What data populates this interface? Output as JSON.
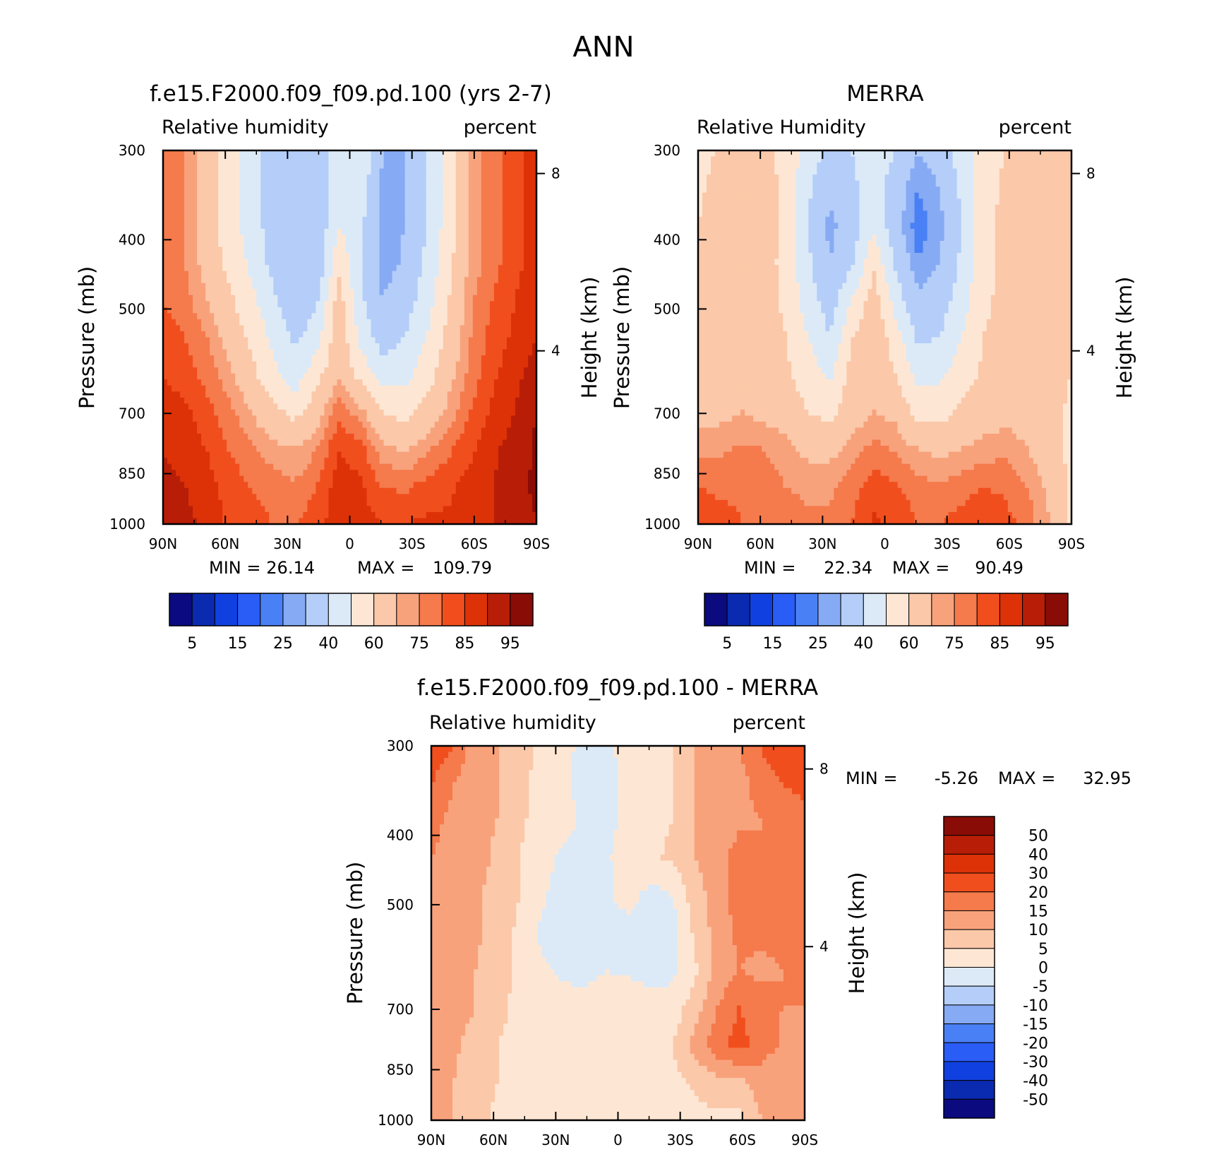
{
  "figure": {
    "season": "ANN"
  },
  "colors": {
    "abs_levels": [
      "#0b0b7f",
      "#0a2ab0",
      "#1040e0",
      "#2a5cf6",
      "#4a80f5",
      "#86aaf3",
      "#b4cef9",
      "#dceaf8",
      "#fde7d4",
      "#fbc8a9",
      "#f8a27c",
      "#f57a4c",
      "#f14e1e",
      "#dd3208",
      "#b81e07",
      "#8a0c06"
    ],
    "diff_levels": [
      "#0b0b7f",
      "#0a2ab0",
      "#1040e0",
      "#2a5cf6",
      "#4a80f5",
      "#86aaf3",
      "#b4cef9",
      "#dceaf8",
      "#fde7d4",
      "#fbc8a9",
      "#f8a27c",
      "#f57a4c",
      "#f14e1e",
      "#dd3208",
      "#b81e07",
      "#8a0c06"
    ]
  },
  "chart_data": [
    {
      "type": "heatmap",
      "id": "model",
      "title": "f.e15.F2000.f09_f09.pd.100 (yrs 2-7)",
      "left_label": "Relative humidity",
      "right_label": "percent",
      "ylabel": "Pressure (mb)",
      "y2label": "Height (km)",
      "x_ticks": [
        "90N",
        "60N",
        "30N",
        "0",
        "30S",
        "60S",
        "90S"
      ],
      "y_ticks": [
        "300",
        "400",
        "500",
        "700",
        "850",
        "1000"
      ],
      "y2_ticks": [
        "8",
        "4"
      ],
      "min_label": "MIN =",
      "min_value": "26.14",
      "max_label": "MAX =",
      "max_value": "109.79",
      "colorbar_labels": [
        "5",
        "15",
        "25",
        "40",
        "60",
        "75",
        "85",
        "95"
      ],
      "x_range_deg": [
        90,
        -90
      ],
      "y_range_mb": [
        300,
        1000
      ],
      "grid_values": [
        [
          80,
          75,
          65,
          55,
          45,
          35,
          30,
          35,
          45,
          50,
          30,
          30,
          40,
          55,
          72,
          78,
          83,
          88
        ],
        [
          80,
          75,
          65,
          55,
          45,
          35,
          30,
          33,
          45,
          45,
          28,
          30,
          40,
          55,
          72,
          78,
          83,
          88
        ],
        [
          80,
          75,
          65,
          55,
          45,
          35,
          30,
          32,
          50,
          42,
          27,
          30,
          40,
          55,
          72,
          78,
          83,
          88
        ],
        [
          80,
          75,
          67,
          57,
          48,
          37,
          32,
          30,
          58,
          40,
          27,
          31,
          42,
          57,
          72,
          78,
          83,
          88
        ],
        [
          80,
          77,
          70,
          62,
          53,
          42,
          33,
          38,
          65,
          42,
          30,
          35,
          45,
          60,
          74,
          80,
          85,
          90
        ],
        [
          82,
          80,
          75,
          67,
          58,
          47,
          38,
          45,
          68,
          47,
          35,
          40,
          50,
          63,
          75,
          82,
          86,
          90
        ],
        [
          85,
          83,
          78,
          72,
          63,
          53,
          44,
          57,
          68,
          57,
          45,
          47,
          55,
          67,
          77,
          84,
          88,
          93
        ],
        [
          87,
          86,
          82,
          77,
          70,
          63,
          57,
          66,
          79,
          72,
          60,
          56,
          64,
          72,
          80,
          86,
          90,
          95
        ],
        [
          89,
          88,
          85,
          80,
          76,
          72,
          70,
          75,
          85,
          82,
          72,
          69,
          74,
          79,
          84,
          89,
          92,
          96
        ],
        [
          93,
          90,
          87,
          83,
          80,
          78,
          76,
          80,
          88,
          86,
          80,
          79,
          82,
          84,
          87,
          90,
          93,
          96
        ],
        [
          95,
          92,
          88,
          84,
          82,
          80,
          80,
          83,
          88,
          87,
          85,
          85,
          86,
          86,
          88,
          90,
          92,
          95
        ]
      ]
    },
    {
      "type": "heatmap",
      "id": "obs",
      "title": "MERRA",
      "left_label": "Relative Humidity",
      "right_label": "percent",
      "ylabel": "Pressure (mb)",
      "y2label": "Height (km)",
      "x_ticks": [
        "90N",
        "60N",
        "30N",
        "0",
        "30S",
        "60S",
        "90S"
      ],
      "y_ticks": [
        "300",
        "400",
        "500",
        "700",
        "850",
        "1000"
      ],
      "y2_ticks": [
        "8",
        "4"
      ],
      "min_label": "MIN =",
      "min_value": "22.34",
      "max_label": "MAX =",
      "max_value": "90.49",
      "colorbar_labels": [
        "5",
        "15",
        "25",
        "40",
        "60",
        "75",
        "85",
        "95"
      ],
      "x_range_deg": [
        90,
        -90
      ],
      "y_range_mb": [
        300,
        1000
      ],
      "grid_values": [
        [
          55,
          62,
          65,
          62,
          57,
          45,
          38,
          40,
          45,
          40,
          30,
          35,
          45,
          56,
          60,
          62,
          62,
          62
        ],
        [
          58,
          64,
          66,
          64,
          58,
          42,
          32,
          38,
          45,
          35,
          25,
          30,
          42,
          56,
          62,
          64,
          62,
          62
        ],
        [
          60,
          65,
          66,
          64,
          58,
          40,
          28,
          35,
          48,
          33,
          22,
          28,
          40,
          56,
          63,
          65,
          63,
          62
        ],
        [
          62,
          65,
          66,
          64,
          57,
          42,
          30,
          38,
          58,
          38,
          25,
          30,
          42,
          56,
          63,
          65,
          63,
          62
        ],
        [
          63,
          66,
          66,
          64,
          58,
          45,
          35,
          50,
          66,
          45,
          32,
          35,
          45,
          58,
          63,
          65,
          63,
          62
        ],
        [
          63,
          66,
          66,
          64,
          60,
          50,
          40,
          60,
          67,
          55,
          38,
          40,
          50,
          60,
          64,
          65,
          63,
          62
        ],
        [
          64,
          66,
          66,
          65,
          62,
          55,
          48,
          64,
          68,
          60,
          47,
          48,
          55,
          62,
          65,
          65,
          63,
          60
        ],
        [
          66,
          68,
          70,
          68,
          66,
          60,
          57,
          66,
          70,
          68,
          57,
          56,
          62,
          66,
          67,
          66,
          64,
          58
        ],
        [
          74,
          74,
          76,
          75,
          72,
          68,
          68,
          72,
          77,
          74,
          70,
          68,
          70,
          72,
          74,
          70,
          65,
          57
        ],
        [
          80,
          79,
          79,
          78,
          75,
          74,
          74,
          78,
          83,
          81,
          77,
          76,
          78,
          80,
          79,
          75,
          68,
          58
        ],
        [
          83,
          82,
          80,
          78,
          77,
          76,
          76,
          80,
          86,
          84,
          80,
          80,
          82,
          84,
          82,
          78,
          70,
          58
        ]
      ]
    },
    {
      "type": "heatmap",
      "id": "diff",
      "title": "f.e15.F2000.f09_f09.pd.100 - MERRA",
      "left_label": "Relative humidity",
      "right_label": "percent",
      "ylabel": "Pressure (mb)",
      "y2label": "Height (km)",
      "x_ticks": [
        "90N",
        "60N",
        "30N",
        "0",
        "30S",
        "60S",
        "90S"
      ],
      "y_ticks": [
        "300",
        "400",
        "500",
        "700",
        "850",
        "1000"
      ],
      "y2_ticks": [
        "8",
        "4"
      ],
      "min_label": "MIN =",
      "min_value": "-5.26",
      "max_label": "MAX =",
      "max_value": "32.95",
      "colorbar_labels": [
        "50",
        "40",
        "30",
        "20",
        "15",
        "10",
        "5",
        "0",
        "-5",
        "-10",
        "-15",
        "-20",
        "-30",
        "-40",
        "-50"
      ],
      "x_range_deg": [
        90,
        -90
      ],
      "y_range_mb": [
        300,
        1000
      ],
      "grid_values": [
        [
          25,
          20,
          12,
          10,
          7,
          4,
          2,
          -2,
          -1,
          3,
          3,
          5,
          10,
          12,
          15,
          20,
          25,
          28
        ],
        [
          20,
          15,
          12,
          10,
          7,
          3,
          1,
          -2,
          -3,
          2,
          3,
          5,
          10,
          12,
          13,
          17,
          20,
          22
        ],
        [
          16,
          14,
          12,
          10,
          6,
          3,
          2,
          -1,
          -2,
          2,
          4,
          5,
          10,
          12,
          14,
          15,
          16,
          18
        ],
        [
          15,
          14,
          12,
          9,
          5,
          2,
          -1,
          -3,
          -1,
          4,
          4,
          6,
          10,
          13,
          17,
          15,
          16,
          18
        ],
        [
          14,
          13,
          11,
          8,
          5,
          1,
          -3,
          -3,
          -1,
          2,
          -2,
          0,
          8,
          12,
          18,
          15,
          16,
          18
        ],
        [
          14,
          13,
          11,
          8,
          4,
          -1,
          -3,
          -2,
          -1,
          -2,
          -3,
          -2,
          6,
          12,
          16,
          16,
          16,
          18
        ],
        [
          13,
          12,
          10,
          7,
          4,
          1,
          -1,
          -1,
          0,
          -1,
          -2,
          -1,
          4,
          11,
          15,
          14,
          15,
          18
        ],
        [
          13,
          12,
          10,
          6,
          4,
          3,
          2,
          1,
          3,
          4,
          2,
          2,
          8,
          15,
          20,
          17,
          15,
          15
        ],
        [
          12,
          11,
          8,
          5,
          4,
          3,
          4,
          2,
          2,
          3,
          2,
          5,
          12,
          18,
          22,
          18,
          14,
          12
        ],
        [
          12,
          10,
          7,
          5,
          3,
          3,
          2,
          2,
          2,
          3,
          3,
          3,
          6,
          8,
          8,
          12,
          10,
          10
        ],
        [
          12,
          10,
          7,
          4,
          3,
          4,
          4,
          3,
          2,
          3,
          3,
          3,
          3,
          4,
          4,
          10,
          12,
          10
        ]
      ]
    }
  ]
}
